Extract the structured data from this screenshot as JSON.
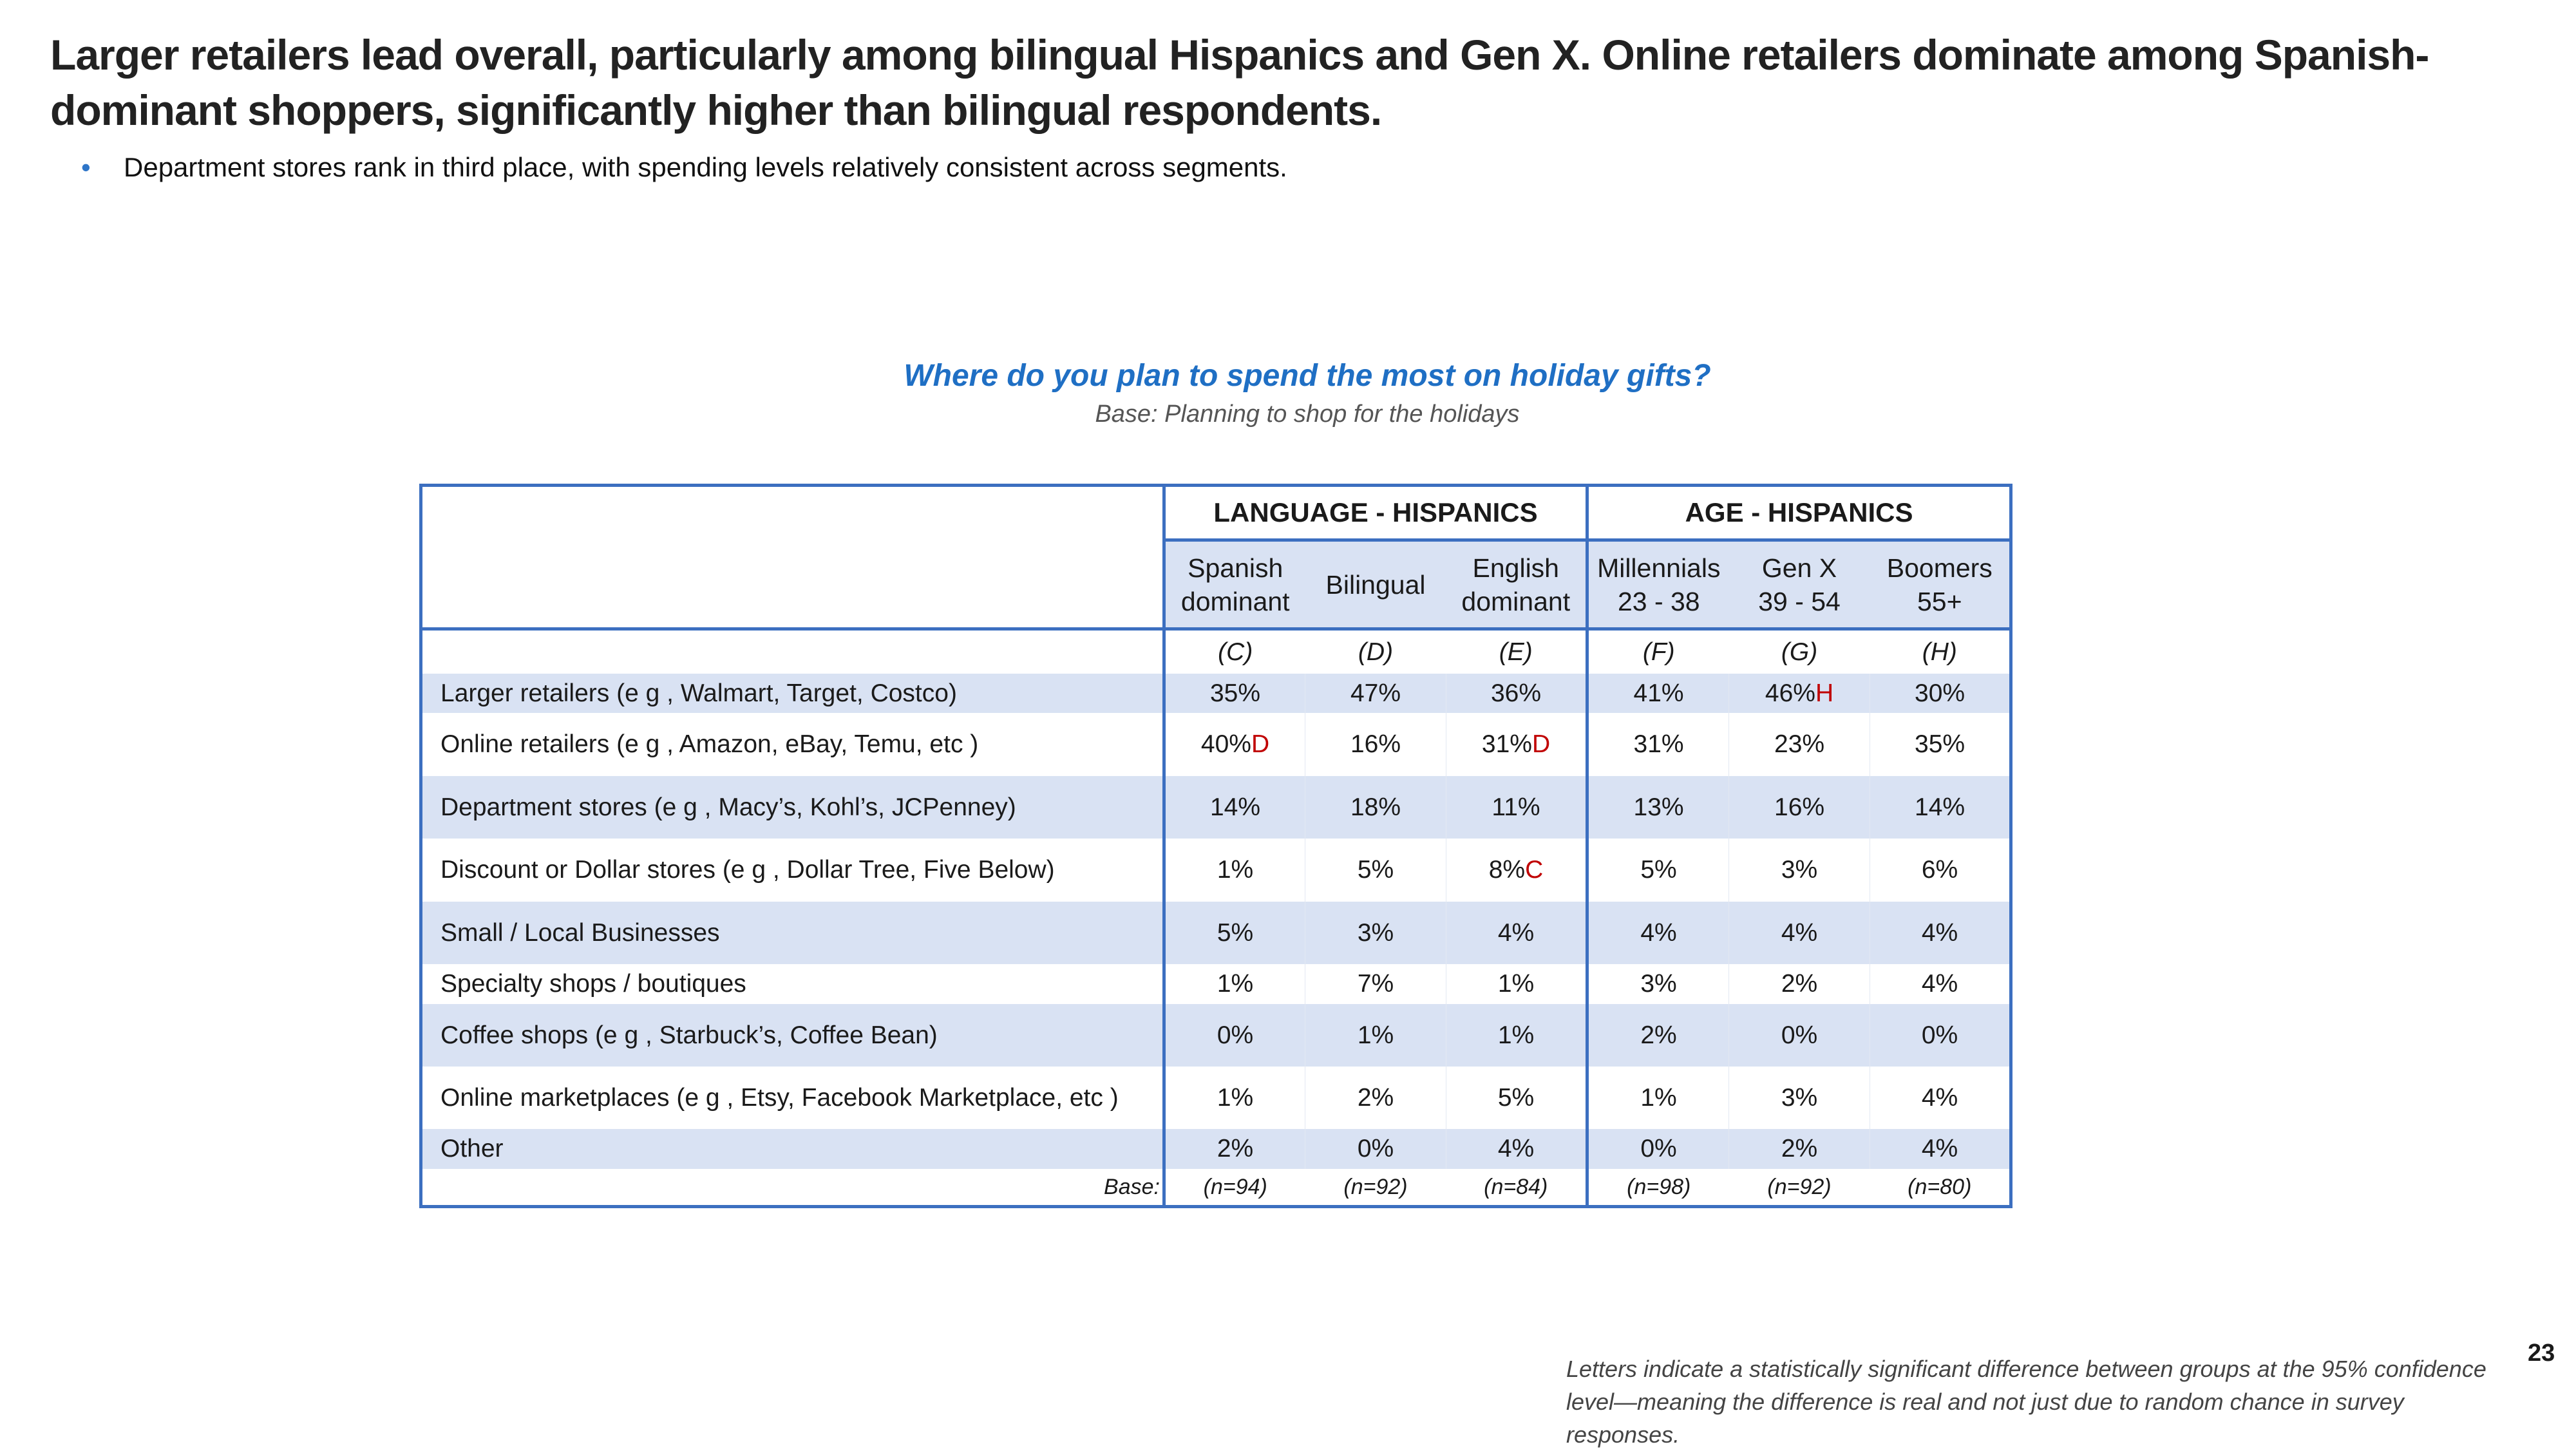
{
  "title": "Larger retailers lead overall, particularly among bilingual Hispanics and Gen X. Online retailers dominate among Spanish-dominant shoppers, significantly higher than bilingual respondents.",
  "bullet": "Department stores rank in third place, with spending levels relatively consistent across segments.",
  "question": "Where do you plan to spend the most on holiday gifts?",
  "base_note": "Base: Planning to shop for the holidays",
  "colors": {
    "accent": "#1f6fc4",
    "border": "#3c6fc0",
    "shade": "#d9e2f3",
    "significance": "#c00000"
  },
  "table": {
    "groups": [
      "LANGUAGE - HISPANICS",
      "AGE - HISPANICS"
    ],
    "columns": [
      {
        "line1": "Spanish",
        "line2": "dominant",
        "letter": "(C)"
      },
      {
        "line1": "Bilingual",
        "line2": "",
        "letter": "(D)"
      },
      {
        "line1": "English",
        "line2": "dominant",
        "letter": "(E)"
      },
      {
        "line1": "Millennials",
        "line2": "23 - 38",
        "letter": "(F)"
      },
      {
        "line1": "Gen X",
        "line2": "39 - 54",
        "letter": "(G)"
      },
      {
        "line1": "Boomers",
        "line2": "55+",
        "letter": "(H)"
      }
    ],
    "rows": [
      {
        "label": "Larger retailers (e g , Walmart, Target, Costco)",
        "values": [
          "35%",
          "47%",
          "36%",
          "41%",
          "46%",
          "30%"
        ],
        "sig": [
          "",
          "",
          "",
          "",
          "H",
          ""
        ]
      },
      {
        "label": "Online retailers (e g , Amazon, eBay, Temu, etc )",
        "values": [
          "40%",
          "16%",
          "31%",
          "31%",
          "23%",
          "35%"
        ],
        "sig": [
          "D",
          "",
          "D",
          "",
          "",
          ""
        ]
      },
      {
        "label": "Department stores (e g , Macy’s, Kohl’s, JCPenney)",
        "values": [
          "14%",
          "18%",
          "11%",
          "13%",
          "16%",
          "14%"
        ],
        "sig": [
          "",
          "",
          "",
          "",
          "",
          ""
        ]
      },
      {
        "label": "Discount or Dollar stores (e g , Dollar Tree, Five Below)",
        "values": [
          "1%",
          "5%",
          "8%",
          "5%",
          "3%",
          "6%"
        ],
        "sig": [
          "",
          "",
          "C",
          "",
          "",
          ""
        ]
      },
      {
        "label": "Small / Local Businesses",
        "values": [
          "5%",
          "3%",
          "4%",
          "4%",
          "4%",
          "4%"
        ],
        "sig": [
          "",
          "",
          "",
          "",
          "",
          ""
        ]
      },
      {
        "label": "Specialty shops / boutiques",
        "values": [
          "1%",
          "7%",
          "1%",
          "3%",
          "2%",
          "4%"
        ],
        "sig": [
          "",
          "",
          "",
          "",
          "",
          ""
        ]
      },
      {
        "label": "Coffee shops (e g , Starbuck’s, Coffee Bean)",
        "values": [
          "0%",
          "1%",
          "1%",
          "2%",
          "0%",
          "0%"
        ],
        "sig": [
          "",
          "",
          "",
          "",
          "",
          ""
        ]
      },
      {
        "label": "Online marketplaces (e g , Etsy, Facebook Marketplace, etc )",
        "values": [
          "1%",
          "2%",
          "5%",
          "1%",
          "3%",
          "4%"
        ],
        "sig": [
          "",
          "",
          "",
          "",
          "",
          ""
        ]
      },
      {
        "label": "Other",
        "values": [
          "2%",
          "0%",
          "4%",
          "0%",
          "2%",
          "4%"
        ],
        "sig": [
          "",
          "",
          "",
          "",
          "",
          ""
        ]
      }
    ],
    "base_label": "Base:",
    "bases": [
      "(n=94)",
      "(n=92)",
      "(n=84)",
      "(n=98)",
      "(n=92)",
      "(n=80)"
    ]
  },
  "footnote": "Letters indicate a statistically significant difference between groups at the 95% confidence level—meaning the difference is real and not just due to random chance in survey responses.",
  "page_number": "23"
}
